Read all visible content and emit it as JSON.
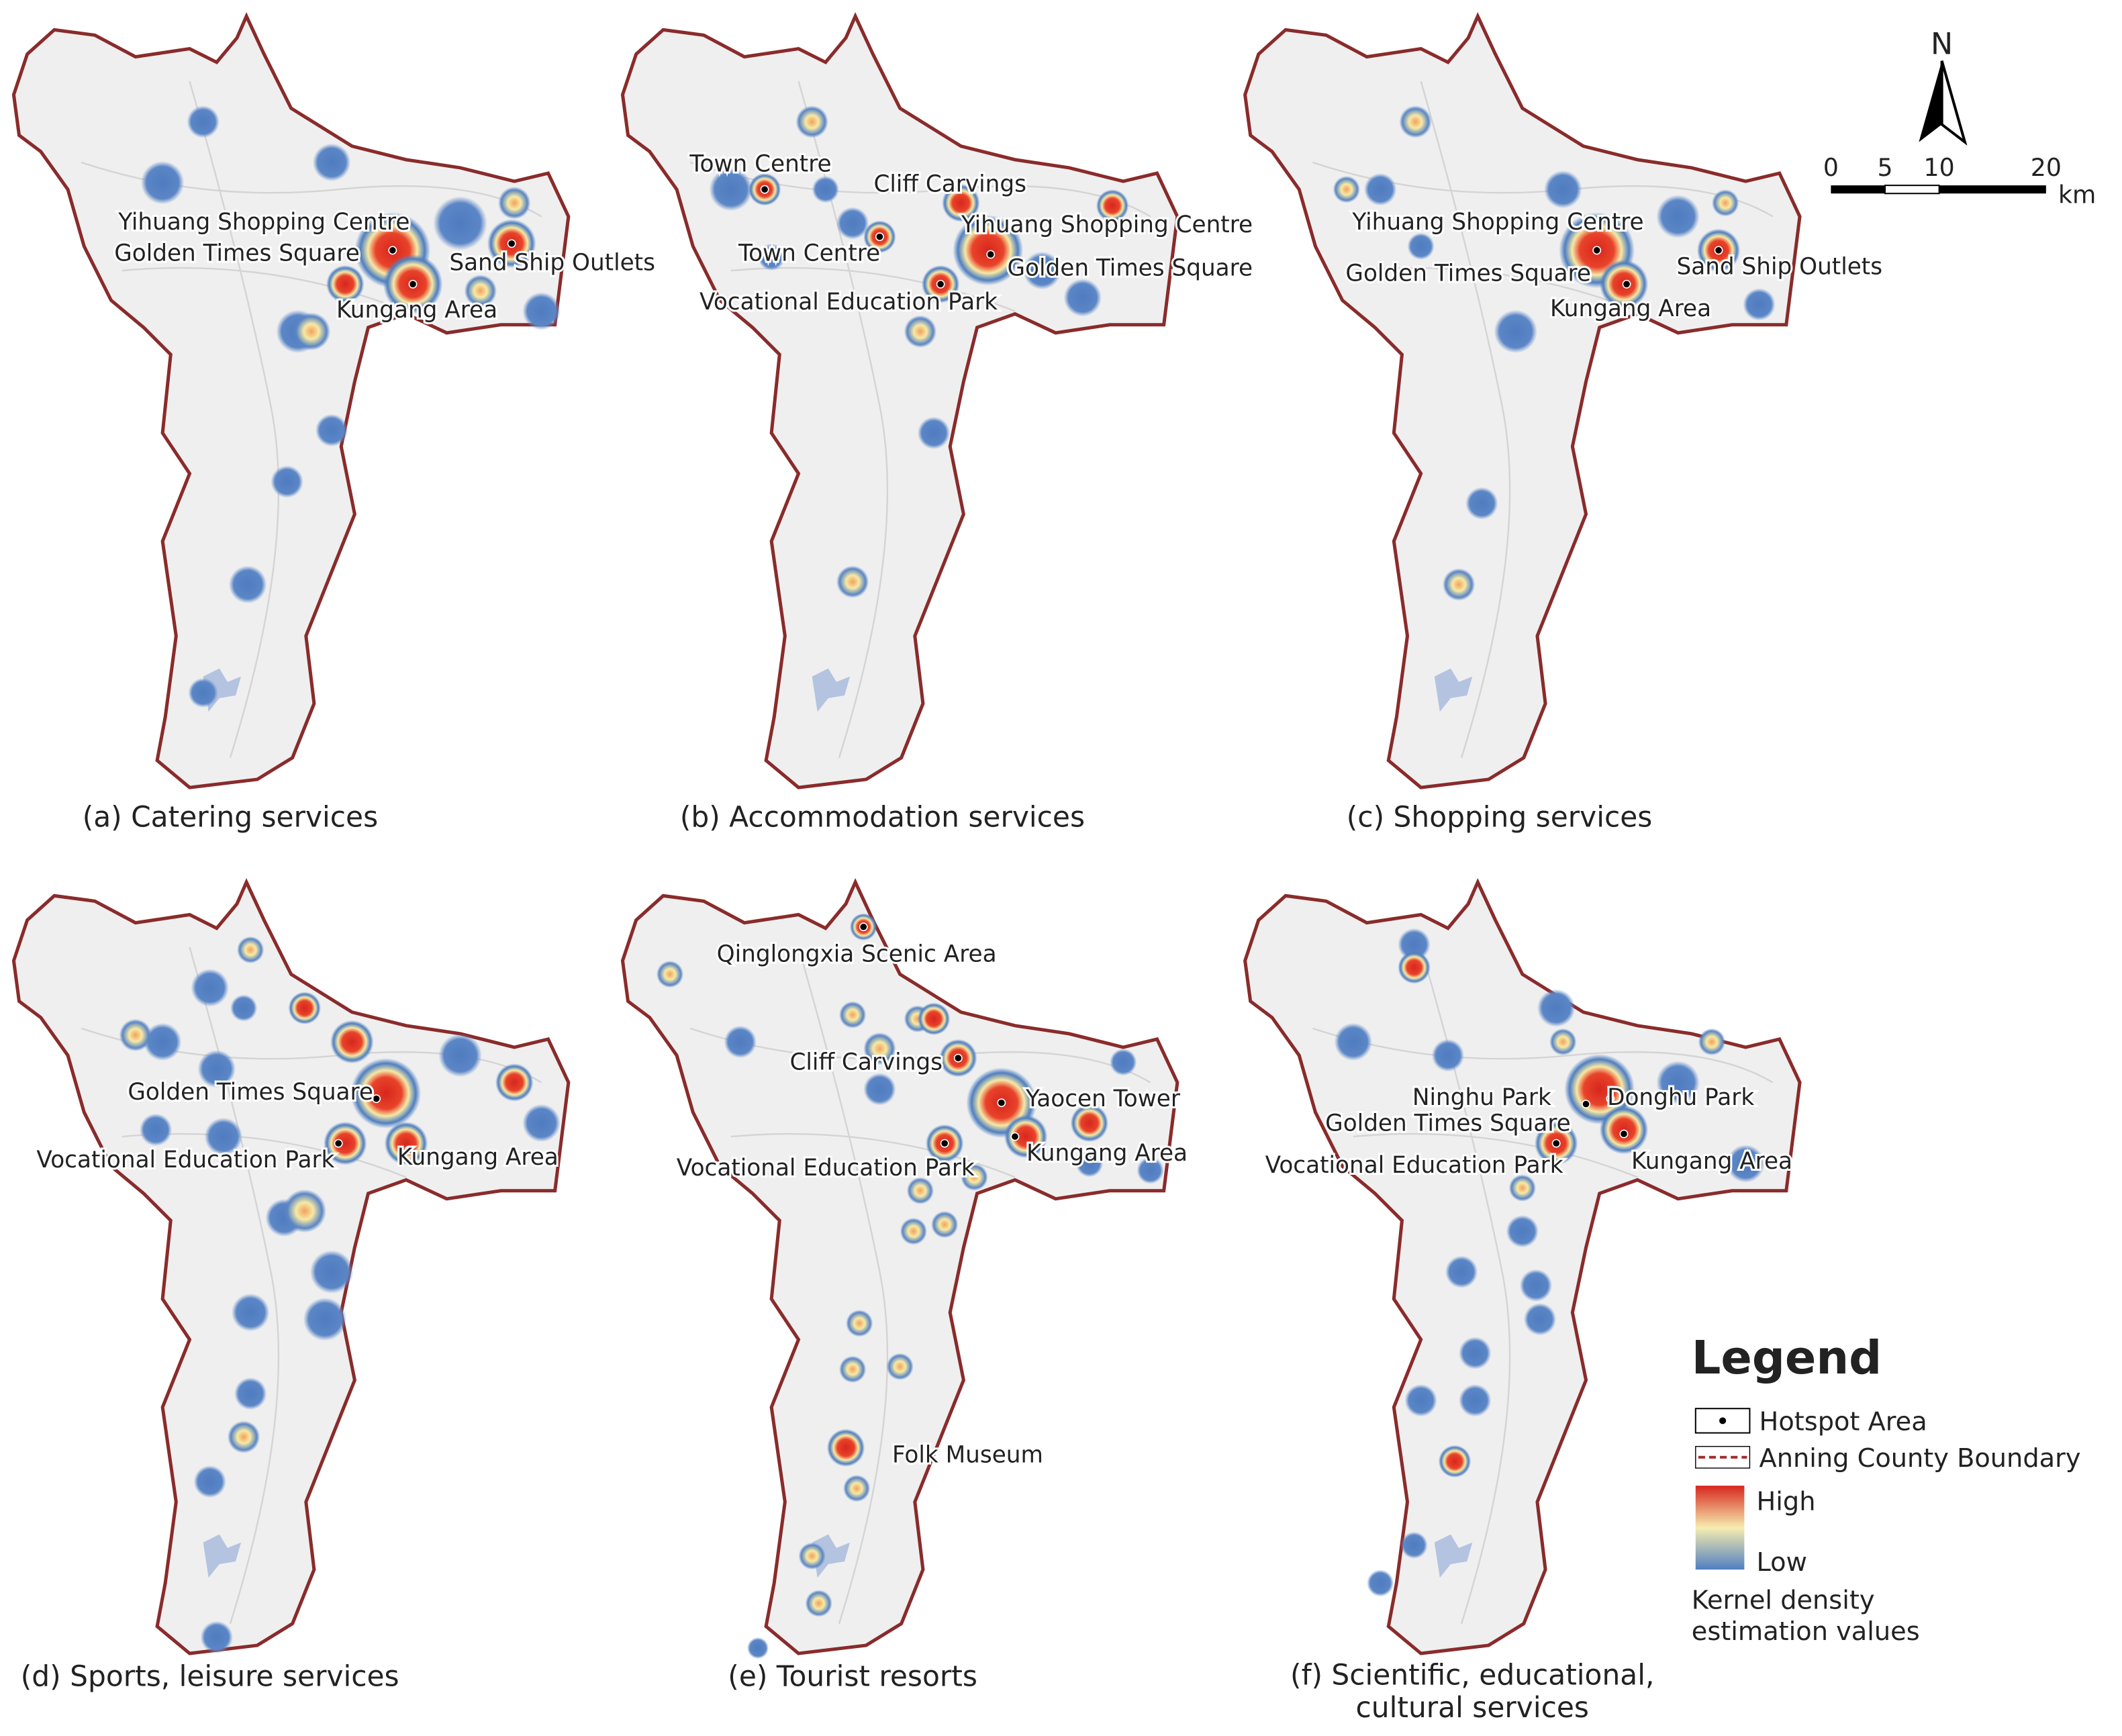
{
  "panels": [
    {
      "caption_lines": [
        "(a) Catering services"
      ],
      "labels": [
        "Yihuang Shopping Centre",
        "Golden Times Square",
        "Sand Ship Outlets",
        "Kungang Area"
      ]
    },
    {
      "caption_lines": [
        "(b) Accommodation services"
      ],
      "labels": [
        "Town Centre",
        "Cliff Carvings",
        "Yihuang Shopping Centre",
        "Town Centre",
        "Golden Times Square",
        "Vocational Education Park"
      ]
    },
    {
      "caption_lines": [
        "(c) Shopping services"
      ],
      "labels": [
        "Yihuang Shopping Centre",
        "Golden Times Square",
        "Sand Ship Outlets",
        "Kungang Area"
      ]
    },
    {
      "caption_lines": [
        "(d) Sports, leisure services"
      ],
      "labels": [
        "Golden Times Square",
        "Vocational Education Park",
        "Kungang Area"
      ]
    },
    {
      "caption_lines": [
        "(e) Tourist resorts"
      ],
      "labels": [
        "Qinglongxia Scenic Area",
        "Cliff Carvings",
        "Yaocen Tower",
        "Vocational Education Park",
        "Kungang Area",
        "Folk Museum"
      ]
    },
    {
      "caption_lines": [
        "(f) Scientific, educational,",
        "cultural services"
      ],
      "labels": [
        "Ninghu Park",
        "Donghu Park",
        "Golden Times Square",
        "Vocational Education Park",
        "Kungang Area"
      ]
    }
  ],
  "north_arrow": "N",
  "scale_bar": {
    "labels": [
      "0",
      "5",
      "10",
      "20"
    ],
    "unit": "km"
  },
  "legend": {
    "title": "Legend",
    "hotspot": "Hotspot Area",
    "boundary": "Anning County Boundary",
    "high": "High",
    "low": "Low",
    "description_lines": [
      "Kernel density",
      "estimation values"
    ]
  }
}
